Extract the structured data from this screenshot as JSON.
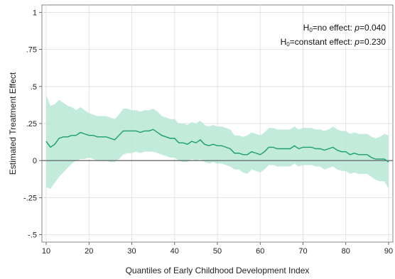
{
  "chart_data": {
    "type": "area",
    "title": "",
    "xlabel": "Quantiles of Early Childhood Development Index",
    "ylabel": "Estimated Treatment Effect",
    "xlim": [
      9,
      91
    ],
    "ylim": [
      -0.55,
      1.05
    ],
    "xticks": [
      10,
      20,
      30,
      40,
      50,
      60,
      70,
      80,
      90
    ],
    "xtick_labels": [
      "10",
      "20",
      "30",
      "40",
      "50",
      "60",
      "70",
      "80",
      "90"
    ],
    "yticks": [
      -0.5,
      -0.25,
      0,
      0.25,
      0.5,
      0.75,
      1
    ],
    "ytick_labels": [
      "-.5",
      "-.25",
      "0",
      ".25",
      ".5",
      ".75",
      "1"
    ],
    "grid": true,
    "zero_line": true,
    "annotations": [
      {
        "prefix": "H",
        "sub": "0",
        "text": "=no effect: ",
        "p": "p",
        "value": "=0.040"
      },
      {
        "prefix": "H",
        "sub": "0",
        "text": "=constant effect: ",
        "p": "p",
        "value": "=0.230"
      }
    ],
    "colors": {
      "line": "#1a9e6e",
      "band": "#b7e7d6",
      "zero": "#555555",
      "grid": "#e3e3e3"
    },
    "series": [
      {
        "x": [
          10,
          11,
          12,
          13,
          14,
          15,
          16,
          17,
          18,
          19,
          20,
          21,
          22,
          23,
          24,
          25,
          26,
          27,
          28,
          29,
          30,
          31,
          32,
          33,
          34,
          35,
          36,
          37,
          38,
          39,
          40,
          41,
          42,
          43,
          44,
          45,
          46,
          47,
          48,
          49,
          50,
          51,
          52,
          53,
          54,
          55,
          56,
          57,
          58,
          59,
          60,
          61,
          62,
          63,
          64,
          65,
          66,
          67,
          68,
          69,
          70,
          71,
          72,
          73,
          74,
          75,
          76,
          77,
          78,
          79,
          80,
          81,
          82,
          83,
          84,
          85,
          86,
          87,
          88,
          89,
          90
        ],
        "estimate": [
          0.13,
          0.09,
          0.11,
          0.15,
          0.16,
          0.16,
          0.17,
          0.17,
          0.19,
          0.18,
          0.17,
          0.17,
          0.16,
          0.16,
          0.16,
          0.15,
          0.14,
          0.17,
          0.2,
          0.2,
          0.2,
          0.2,
          0.19,
          0.2,
          0.2,
          0.21,
          0.19,
          0.17,
          0.16,
          0.15,
          0.15,
          0.12,
          0.12,
          0.11,
          0.13,
          0.12,
          0.14,
          0.11,
          0.1,
          0.11,
          0.1,
          0.1,
          0.09,
          0.08,
          0.05,
          0.05,
          0.04,
          0.04,
          0.06,
          0.05,
          0.04,
          0.06,
          0.09,
          0.09,
          0.08,
          0.08,
          0.08,
          0.08,
          0.1,
          0.08,
          0.09,
          0.09,
          0.09,
          0.08,
          0.08,
          0.07,
          0.08,
          0.09,
          0.07,
          0.06,
          0.06,
          0.04,
          0.05,
          0.04,
          0.04,
          0.04,
          0.02,
          0.01,
          0.01,
          0.01,
          -0.01
        ],
        "lower": [
          -0.18,
          -0.19,
          -0.15,
          -0.11,
          -0.08,
          -0.05,
          -0.02,
          0.0,
          0.01,
          0.01,
          0.02,
          0.01,
          0.0,
          0.0,
          0.0,
          -0.01,
          -0.01,
          0.01,
          0.04,
          0.05,
          0.05,
          0.06,
          0.05,
          0.06,
          0.06,
          0.06,
          0.05,
          0.04,
          0.03,
          0.02,
          0.02,
          0.0,
          -0.01,
          -0.01,
          0.01,
          0.0,
          0.01,
          -0.01,
          -0.02,
          -0.01,
          -0.02,
          -0.02,
          -0.03,
          -0.04,
          -0.06,
          -0.06,
          -0.08,
          -0.09,
          -0.06,
          -0.07,
          -0.08,
          -0.06,
          -0.03,
          -0.03,
          -0.04,
          -0.04,
          -0.04,
          -0.04,
          -0.02,
          -0.04,
          -0.03,
          -0.03,
          -0.03,
          -0.04,
          -0.04,
          -0.06,
          -0.05,
          -0.04,
          -0.06,
          -0.07,
          -0.07,
          -0.09,
          -0.08,
          -0.09,
          -0.09,
          -0.09,
          -0.11,
          -0.13,
          -0.14,
          -0.14,
          -0.19
        ],
        "upper": [
          0.44,
          0.37,
          0.38,
          0.41,
          0.39,
          0.37,
          0.36,
          0.34,
          0.36,
          0.34,
          0.32,
          0.31,
          0.3,
          0.3,
          0.3,
          0.29,
          0.28,
          0.31,
          0.35,
          0.35,
          0.34,
          0.34,
          0.33,
          0.34,
          0.34,
          0.35,
          0.33,
          0.3,
          0.29,
          0.28,
          0.28,
          0.25,
          0.25,
          0.24,
          0.26,
          0.25,
          0.27,
          0.24,
          0.23,
          0.24,
          0.23,
          0.23,
          0.22,
          0.21,
          0.17,
          0.17,
          0.16,
          0.17,
          0.19,
          0.18,
          0.17,
          0.19,
          0.22,
          0.22,
          0.21,
          0.21,
          0.21,
          0.21,
          0.23,
          0.21,
          0.22,
          0.22,
          0.22,
          0.21,
          0.21,
          0.2,
          0.21,
          0.23,
          0.21,
          0.2,
          0.2,
          0.18,
          0.19,
          0.18,
          0.18,
          0.18,
          0.16,
          0.15,
          0.16,
          0.18,
          0.17
        ]
      }
    ]
  }
}
